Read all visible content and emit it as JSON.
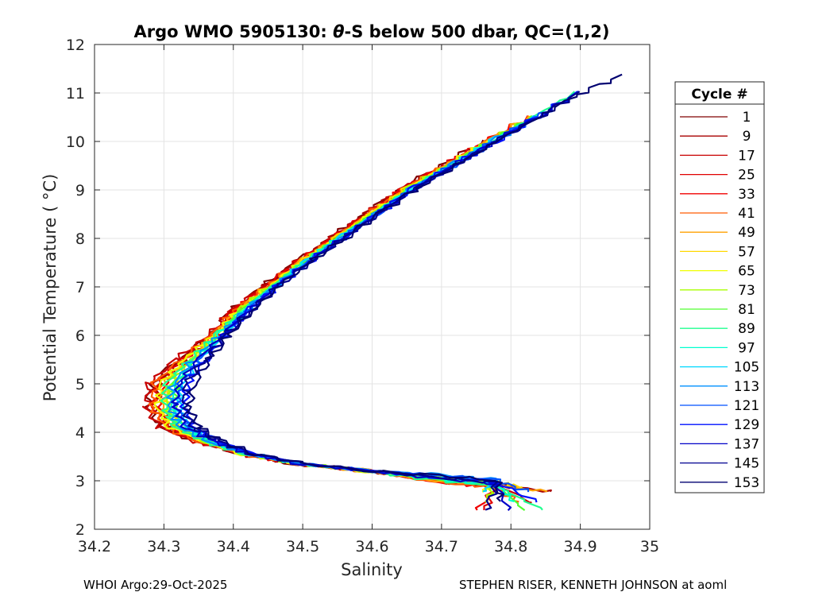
{
  "chart_data": {
    "type": "line",
    "title_prefix": "Argo WMO 5905130: ",
    "title_symbol": "θ",
    "title_suffix": "-S below 500 dbar,  QC=(1,2)",
    "xlabel": "Salinity",
    "ylabel": "Potential Temperature ( °C)",
    "xlim": [
      34.2,
      35
    ],
    "ylim": [
      2,
      12
    ],
    "xticks": [
      "34.2",
      "34.3",
      "34.4",
      "34.5",
      "34.6",
      "34.7",
      "34.8",
      "34.9",
      "35"
    ],
    "yticks": [
      "2",
      "3",
      "4",
      "5",
      "6",
      "7",
      "8",
      "9",
      "10",
      "11",
      "12"
    ],
    "grid": true,
    "legend": {
      "title": "Cycle #",
      "position": "right outside",
      "entries": [
        {
          "label": "1",
          "color": "#800000"
        },
        {
          "label": "9",
          "color": "#a80000"
        },
        {
          "label": "17",
          "color": "#c80000"
        },
        {
          "label": "25",
          "color": "#e00000"
        },
        {
          "label": "33",
          "color": "#f00000"
        },
        {
          "label": "41",
          "color": "#ff5a00"
        },
        {
          "label": "49",
          "color": "#ffa000"
        },
        {
          "label": "57",
          "color": "#ffd800"
        },
        {
          "label": "65",
          "color": "#f0ff00"
        },
        {
          "label": "73",
          "color": "#a8ff00"
        },
        {
          "label": "81",
          "color": "#50ff30"
        },
        {
          "label": "89",
          "color": "#20ff90"
        },
        {
          "label": "97",
          "color": "#00ffd0"
        },
        {
          "label": "105",
          "color": "#00d8ff"
        },
        {
          "label": "113",
          "color": "#0090ff"
        },
        {
          "label": "121",
          "color": "#0050ff"
        },
        {
          "label": "129",
          "color": "#0010ff"
        },
        {
          "label": "137",
          "color": "#0000c8"
        },
        {
          "label": "145",
          "color": "#000090"
        },
        {
          "label": "153",
          "color": "#000070"
        }
      ]
    },
    "profile_shape": [
      {
        "s": 34.33,
        "t": 4.5
      },
      {
        "s": 34.335,
        "t": 5.0
      },
      {
        "s": 34.36,
        "t": 5.5
      },
      {
        "s": 34.39,
        "t": 6.0
      },
      {
        "s": 34.425,
        "t": 6.5
      },
      {
        "s": 34.465,
        "t": 7.0
      },
      {
        "s": 34.51,
        "t": 7.5
      },
      {
        "s": 34.56,
        "t": 8.0
      },
      {
        "s": 34.61,
        "t": 8.5
      },
      {
        "s": 34.66,
        "t": 9.0
      },
      {
        "s": 34.72,
        "t": 9.5
      },
      {
        "s": 34.78,
        "t": 10.0
      },
      {
        "s": 34.84,
        "t": 10.5
      },
      {
        "s": 34.9,
        "t": 11.0
      },
      {
        "s": 34.96,
        "t": 11.35
      }
    ],
    "profile_deep": [
      {
        "s": 34.33,
        "t": 4.5
      },
      {
        "s": 34.345,
        "t": 4.1
      },
      {
        "s": 34.38,
        "t": 3.8
      },
      {
        "s": 34.43,
        "t": 3.55
      },
      {
        "s": 34.5,
        "t": 3.35
      },
      {
        "s": 34.6,
        "t": 3.2
      },
      {
        "s": 34.7,
        "t": 3.1
      },
      {
        "s": 34.78,
        "t": 3.0
      },
      {
        "s": 34.82,
        "t": 2.75
      }
    ]
  },
  "footer": {
    "left": "WHOI Argo:29-Oct-2025",
    "right": "STEPHEN RISER, KENNETH JOHNSON at aoml"
  }
}
